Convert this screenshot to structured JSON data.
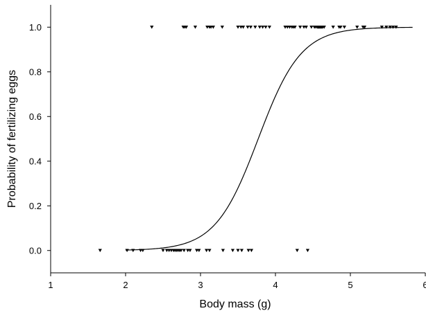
{
  "chart_data": {
    "type": "scatter",
    "title": "",
    "xlabel": "Body mass (g)",
    "ylabel": "Probability of fertilizing eggs",
    "xlim": [
      1,
      6
    ],
    "ylim": [
      -0.1,
      1.1
    ],
    "x_ticks": [
      1,
      2,
      3,
      4,
      5,
      6
    ],
    "x_tick_labels": [
      "1",
      "2",
      "3",
      "4",
      "5",
      "6"
    ],
    "y_ticks": [
      0.0,
      0.2,
      0.4,
      0.6,
      0.8,
      1.0
    ],
    "y_tick_labels": [
      "0.0",
      "0.2",
      "0.4",
      "0.6",
      "0.8",
      "1.0"
    ],
    "grid": false,
    "legend": "none",
    "marker": "triangle-down",
    "marker_color": "#000000",
    "curve_color": "#000000",
    "series": [
      {
        "kind": "points",
        "y": 1.0,
        "x": [
          2.35,
          2.77,
          2.79,
          2.81,
          2.93,
          3.09,
          3.12,
          3.14,
          3.17,
          3.29,
          3.5,
          3.54,
          3.57,
          3.63,
          3.67,
          3.73,
          3.79,
          3.83,
          3.87,
          3.92,
          4.13,
          4.16,
          4.19,
          4.22,
          4.24,
          4.26,
          4.33,
          4.38,
          4.41,
          4.48,
          4.52,
          4.54,
          4.56,
          4.57,
          4.58,
          4.59,
          4.6,
          4.61,
          4.62,
          4.63,
          4.65,
          4.77,
          4.85,
          4.87,
          4.92,
          5.09,
          5.17,
          5.19,
          5.42,
          5.48,
          5.53,
          5.57,
          5.61
        ]
      },
      {
        "kind": "points",
        "y": 0.0,
        "x": [
          1.66,
          2.02,
          2.1,
          2.2,
          2.23,
          2.5,
          2.55,
          2.58,
          2.61,
          2.64,
          2.66,
          2.68,
          2.7,
          2.72,
          2.74,
          2.78,
          2.83,
          2.86,
          2.95,
          2.98,
          3.08,
          3.12,
          3.3,
          3.43,
          3.5,
          3.55,
          3.64,
          3.68,
          4.29,
          4.43
        ]
      },
      {
        "kind": "logistic-fit",
        "x_range": [
          2.0,
          5.83
        ],
        "midpoint": 3.77,
        "slope": 3.5
      }
    ]
  }
}
